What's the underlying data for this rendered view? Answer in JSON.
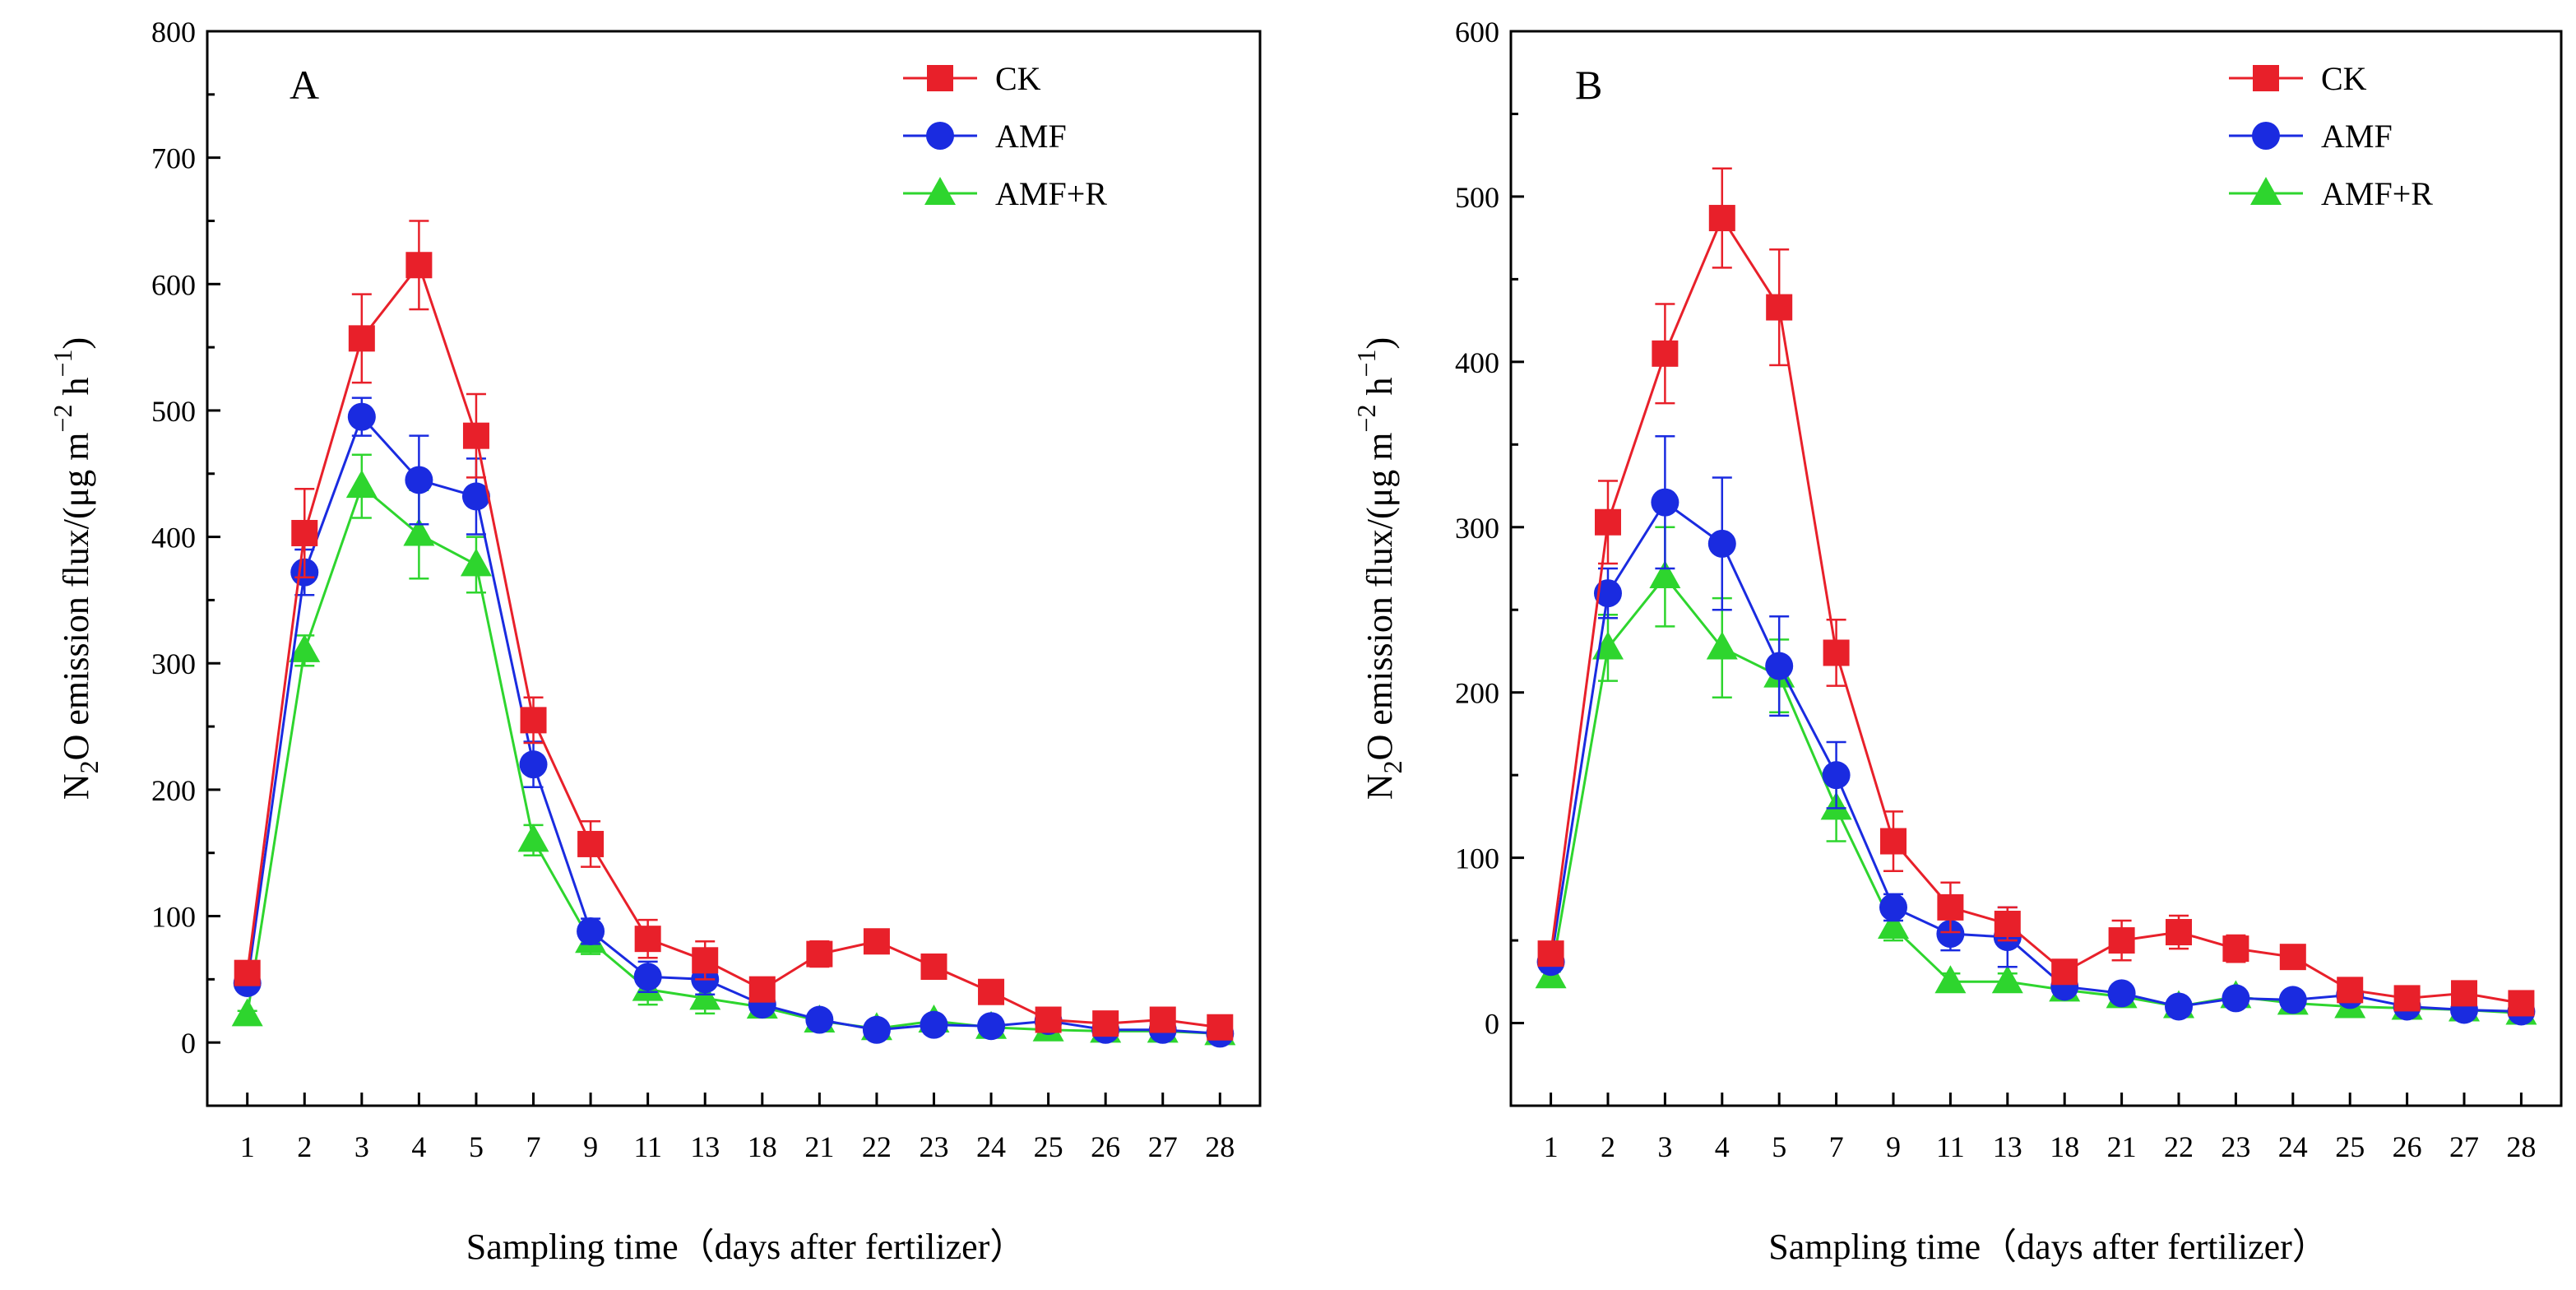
{
  "chart_data": [
    {
      "type": "line",
      "panel": "A",
      "xlabel": "Sampling time（days after fertilizer）",
      "ylabel": "N2O emission flux/(μg m−2 h−1)",
      "ylabel_parts": {
        "base": "N",
        "sub": "2",
        "mid": "O emission flux/(μg m",
        "sup1": "−2",
        "mid2": " h",
        "sup2": "−1",
        "end": ")"
      },
      "categories": [
        "1",
        "2",
        "3",
        "4",
        "5",
        "7",
        "9",
        "11",
        "13",
        "18",
        "21",
        "22",
        "23",
        "24",
        "25",
        "26",
        "27",
        "28"
      ],
      "ylim": [
        -50,
        800
      ],
      "yticks": [
        0,
        100,
        200,
        300,
        400,
        500,
        600,
        700,
        800
      ],
      "legend_position": "top-right",
      "series": [
        {
          "name": "CK",
          "color": "#e8202a",
          "marker": "square",
          "values": [
            55,
            403,
            557,
            615,
            480,
            255,
            157,
            82,
            65,
            42,
            70,
            80,
            60,
            40,
            18,
            15,
            18,
            12
          ],
          "errors": [
            5,
            35,
            35,
            35,
            33,
            18,
            18,
            15,
            15,
            6,
            10,
            6,
            6,
            4,
            4,
            3,
            3,
            3
          ]
        },
        {
          "name": "AMF",
          "color": "#1a2be0",
          "marker": "circle",
          "values": [
            47,
            372,
            495,
            445,
            432,
            220,
            88,
            52,
            50,
            30,
            18,
            10,
            14,
            13,
            17,
            10,
            10,
            7
          ],
          "errors": [
            5,
            18,
            15,
            35,
            30,
            18,
            10,
            12,
            12,
            5,
            4,
            3,
            3,
            3,
            3,
            3,
            3,
            3
          ]
        },
        {
          "name": "AMF+R",
          "color": "#2ed52e",
          "marker": "triangle",
          "values": [
            22,
            310,
            440,
            402,
            378,
            160,
            80,
            42,
            35,
            28,
            17,
            11,
            17,
            12,
            10,
            9,
            9,
            7
          ],
          "errors": [
            3,
            12,
            25,
            35,
            22,
            12,
            10,
            12,
            12,
            5,
            3,
            3,
            3,
            3,
            3,
            3,
            3,
            3
          ]
        }
      ]
    },
    {
      "type": "line",
      "panel": "B",
      "xlabel": "Sampling time（days after fertilizer）",
      "ylabel": "N2O emission flux/(μg m−2 h−1)",
      "ylabel_parts": {
        "base": "N",
        "sub": "2",
        "mid": "O emission flux/(μg m",
        "sup1": "−2",
        "mid2": " h",
        "sup2": "−1",
        "end": ")"
      },
      "categories": [
        "1",
        "2",
        "3",
        "4",
        "5",
        "7",
        "9",
        "11",
        "13",
        "18",
        "21",
        "22",
        "23",
        "24",
        "25",
        "26",
        "27",
        "28"
      ],
      "ylim": [
        -50,
        600
      ],
      "yticks": [
        0,
        100,
        200,
        300,
        400,
        500,
        600
      ],
      "legend_position": "top-right",
      "series": [
        {
          "name": "CK",
          "color": "#e8202a",
          "marker": "square",
          "values": [
            42,
            303,
            405,
            487,
            433,
            224,
            110,
            70,
            60,
            31,
            50,
            55,
            45,
            40,
            20,
            15,
            18,
            12
          ],
          "errors": [
            4,
            25,
            30,
            30,
            35,
            20,
            18,
            15,
            10,
            5,
            12,
            10,
            8,
            4,
            4,
            3,
            3,
            3
          ]
        },
        {
          "name": "AMF",
          "color": "#1a2be0",
          "marker": "circle",
          "values": [
            37,
            260,
            315,
            290,
            216,
            150,
            70,
            54,
            52,
            22,
            18,
            10,
            15,
            14,
            17,
            10,
            8,
            7
          ],
          "errors": [
            4,
            15,
            40,
            40,
            30,
            20,
            8,
            10,
            18,
            4,
            4,
            3,
            3,
            3,
            3,
            3,
            3,
            3
          ]
        },
        {
          "name": "AMF+R",
          "color": "#2ed52e",
          "marker": "triangle",
          "values": [
            28,
            227,
            270,
            227,
            210,
            130,
            58,
            25,
            25,
            20,
            16,
            10,
            16,
            12,
            10,
            9,
            8,
            6
          ],
          "errors": [
            3,
            20,
            30,
            30,
            22,
            20,
            8,
            5,
            5,
            3,
            3,
            3,
            3,
            3,
            3,
            3,
            3,
            3
          ]
        }
      ]
    }
  ]
}
